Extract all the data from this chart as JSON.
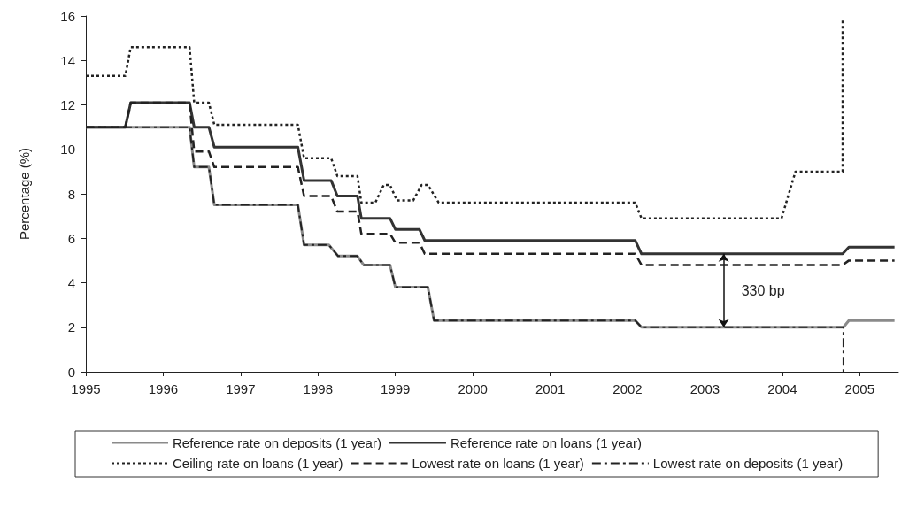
{
  "chart_data": {
    "type": "line",
    "ylabel": "Percentage (%)",
    "xlim": [
      1995,
      2005.5
    ],
    "xticks": [
      1995,
      1996,
      1997,
      1998,
      1999,
      2000,
      2001,
      2002,
      2003,
      2004,
      2005
    ],
    "ylim": [
      0,
      16
    ],
    "yticks": [
      0,
      2,
      4,
      6,
      8,
      10,
      12,
      14,
      16
    ],
    "grid": false,
    "legend": "bottom",
    "marker": "none",
    "annotations": [
      "330 bp"
    ],
    "series": [
      {
        "name": "Reference rate on deposits (1 year)",
        "color": "#8a8a8a",
        "line_style": "solid",
        "x": [
          1995,
          1996.34,
          1996.4,
          1996.59,
          1996.66,
          1997.74,
          1997.82,
          1998.14,
          1998.26,
          1998.51,
          1998.59,
          1998.93,
          1999.0,
          1999.42,
          1999.5,
          2002.1,
          2002.18,
          2004.79,
          2004.86,
          2005.45
        ],
        "values": [
          11,
          11,
          9.2,
          9.2,
          7.5,
          7.5,
          5.7,
          5.7,
          5.2,
          5.2,
          4.8,
          4.8,
          3.8,
          3.8,
          2.3,
          2.3,
          2.0,
          2.0,
          2.3,
          2.3
        ]
      },
      {
        "name": "Reference rate on loans (1 year)",
        "color": "#333333",
        "line_style": "solid",
        "x": [
          1995,
          1995.51,
          1995.58,
          1996.34,
          1996.4,
          1996.59,
          1996.66,
          1997.74,
          1997.82,
          1998.17,
          1998.25,
          1998.51,
          1998.56,
          1998.93,
          1999.0,
          1999.31,
          1999.38,
          2002.1,
          2002.18,
          2004.78,
          2004.86,
          2005.45
        ],
        "values": [
          11,
          11,
          12.1,
          12.1,
          11,
          11,
          10.1,
          10.1,
          8.6,
          8.6,
          7.9,
          7.9,
          6.9,
          6.9,
          6.4,
          6.4,
          5.9,
          5.9,
          5.3,
          5.3,
          5.6,
          5.6
        ]
      },
      {
        "name": "Ceiling rate on loans (1 year)",
        "color": "#222222",
        "line_style": "dotted",
        "x": [
          1995,
          1995.51,
          1995.58,
          1996.34,
          1996.4,
          1996.59,
          1996.66,
          1997.74,
          1997.82,
          1998.17,
          1998.25,
          1998.51,
          1998.56,
          1998.74,
          1998.85,
          1998.93,
          1999.02,
          1999.23,
          1999.34,
          1999.42,
          1999.56,
          2002.1,
          2002.18,
          2003.99,
          2004.17,
          2004.78,
          2004.78
        ],
        "values": [
          13.3,
          13.3,
          14.6,
          14.6,
          12.1,
          12.1,
          11.1,
          11.1,
          9.6,
          9.6,
          8.8,
          8.8,
          7.6,
          7.6,
          8.4,
          8.4,
          7.7,
          7.7,
          8.4,
          8.4,
          7.6,
          7.6,
          6.9,
          6.9,
          9.0,
          9.0,
          15.8
        ]
      },
      {
        "name": "Lowest rate on loans (1 year)",
        "color": "#222222",
        "line_style": "dashed",
        "x": [
          1995,
          1995.51,
          1995.58,
          1996.34,
          1996.4,
          1996.59,
          1996.66,
          1997.74,
          1997.82,
          1998.17,
          1998.25,
          1998.51,
          1998.56,
          1998.93,
          1999.0,
          1999.31,
          1999.38,
          2002.1,
          2002.18,
          2004.78,
          2004.86,
          2005.45
        ],
        "values": [
          11,
          11,
          12.1,
          12.1,
          9.9,
          9.9,
          9.2,
          9.2,
          7.9,
          7.9,
          7.2,
          7.2,
          6.2,
          6.2,
          5.8,
          5.8,
          5.3,
          5.3,
          4.8,
          4.8,
          5.0,
          5.0
        ]
      },
      {
        "name": "Lowest rate on deposits (1 year)",
        "color": "#222222",
        "line_style": "dashdot",
        "x": [
          1995,
          1996.34,
          1996.4,
          1996.59,
          1996.66,
          1997.74,
          1997.82,
          1998.14,
          1998.26,
          1998.51,
          1998.59,
          1998.93,
          1999.0,
          1999.42,
          1999.5,
          2002.1,
          2002.18,
          2004.79,
          2004.79
        ],
        "values": [
          11,
          11,
          9.2,
          9.2,
          7.5,
          7.5,
          5.7,
          5.7,
          5.2,
          5.2,
          4.8,
          4.8,
          3.8,
          3.8,
          2.3,
          2.3,
          2.0,
          2.0,
          0
        ]
      }
    ]
  }
}
